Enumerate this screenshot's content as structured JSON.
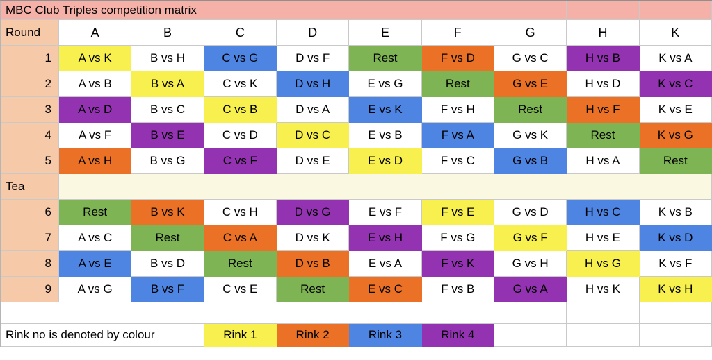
{
  "title": "MBC Club Triples competition matrix",
  "round_header": "Round",
  "teams": [
    "A",
    "B",
    "C",
    "D",
    "E",
    "F",
    "G",
    "H",
    "K"
  ],
  "tea_label": "Tea",
  "tea_after_round": 5,
  "colors": {
    "rink1": "#F7F04E",
    "rink2": "#EA7125",
    "rink3": "#4E84E2",
    "rink4": "#9333B1",
    "rest": "#7EB454",
    "title_bg": "#F5B1A7",
    "label_bg": "#F6C9A9",
    "tea_bg": "#FAF8E0",
    "grid": "#C9C9C9"
  },
  "rounds": [
    {
      "round": "1",
      "cells": [
        [
          "A vs K",
          "rink1"
        ],
        [
          "B vs H",
          null
        ],
        [
          "C vs G",
          "rink3"
        ],
        [
          "D vs F",
          null
        ],
        [
          "Rest",
          "rest"
        ],
        [
          "F vs D",
          "rink2"
        ],
        [
          "G vs C",
          null
        ],
        [
          "H vs B",
          "rink4"
        ],
        [
          "K vs A",
          null
        ]
      ]
    },
    {
      "round": "2",
      "cells": [
        [
          "A vs B",
          null
        ],
        [
          "B vs A",
          "rink1"
        ],
        [
          "C vs K",
          null
        ],
        [
          "D vs H",
          "rink3"
        ],
        [
          "E vs G",
          null
        ],
        [
          "Rest",
          "rest"
        ],
        [
          "G vs E",
          "rink2"
        ],
        [
          "H vs D",
          null
        ],
        [
          "K vs C",
          "rink4"
        ]
      ]
    },
    {
      "round": "3",
      "cells": [
        [
          "A vs D",
          "rink4"
        ],
        [
          "B vs C",
          null
        ],
        [
          "C vs B",
          "rink1"
        ],
        [
          "D vs A",
          null
        ],
        [
          "E vs K",
          "rink3"
        ],
        [
          "F vs H",
          null
        ],
        [
          "Rest",
          "rest"
        ],
        [
          "H vs F",
          "rink2"
        ],
        [
          "K vs E",
          null
        ]
      ]
    },
    {
      "round": "4",
      "cells": [
        [
          "A vs F",
          null
        ],
        [
          "B vs E",
          "rink4"
        ],
        [
          "C vs D",
          null
        ],
        [
          "D vs C",
          "rink1"
        ],
        [
          "E vs B",
          null
        ],
        [
          "F vs A",
          "rink3"
        ],
        [
          "G vs K",
          null
        ],
        [
          "Rest",
          "rest"
        ],
        [
          "K vs G",
          "rink2"
        ]
      ]
    },
    {
      "round": "5",
      "cells": [
        [
          "A vs H",
          "rink2"
        ],
        [
          "B vs G",
          null
        ],
        [
          "C vs F",
          "rink4"
        ],
        [
          "D vs E",
          null
        ],
        [
          "E vs D",
          "rink1"
        ],
        [
          "F vs C",
          null
        ],
        [
          "G vs B",
          "rink3"
        ],
        [
          "H vs A",
          null
        ],
        [
          "Rest",
          "rest"
        ]
      ]
    },
    {
      "round": "6",
      "cells": [
        [
          "Rest",
          "rest"
        ],
        [
          "B vs K",
          "rink2"
        ],
        [
          "C vs H",
          null
        ],
        [
          "D vs G",
          "rink4"
        ],
        [
          "E vs F",
          null
        ],
        [
          "F vs E",
          "rink1"
        ],
        [
          "G vs D",
          null
        ],
        [
          "H vs C",
          "rink3"
        ],
        [
          "K vs B",
          null
        ]
      ]
    },
    {
      "round": "7",
      "cells": [
        [
          "A vs C",
          null
        ],
        [
          "Rest",
          "rest"
        ],
        [
          "C vs A",
          "rink2"
        ],
        [
          "D vs K",
          null
        ],
        [
          "E vs H",
          "rink4"
        ],
        [
          "F vs G",
          null
        ],
        [
          "G vs F",
          "rink1"
        ],
        [
          "H vs E",
          null
        ],
        [
          "K vs D",
          "rink3"
        ]
      ]
    },
    {
      "round": "8",
      "cells": [
        [
          "A vs E",
          "rink3"
        ],
        [
          "B vs D",
          null
        ],
        [
          "Rest",
          "rest"
        ],
        [
          "D vs B",
          "rink2"
        ],
        [
          "E vs A",
          null
        ],
        [
          "F vs K",
          "rink4"
        ],
        [
          "G vs H",
          null
        ],
        [
          "H vs G",
          "rink1"
        ],
        [
          "K vs F",
          null
        ]
      ]
    },
    {
      "round": "9",
      "cells": [
        [
          "A vs G",
          null
        ],
        [
          "B vs F",
          "rink3"
        ],
        [
          "C vs E",
          null
        ],
        [
          "Rest",
          "rest"
        ],
        [
          "E vs C",
          "rink2"
        ],
        [
          "F vs B",
          null
        ],
        [
          "G vs A",
          "rink4"
        ],
        [
          "H vs K",
          null
        ],
        [
          "K vs H",
          "rink1"
        ]
      ]
    }
  ],
  "legend": {
    "label": "Rink no is denoted by colour",
    "items": [
      {
        "text": "Rink 1",
        "color": "rink1"
      },
      {
        "text": "Rink 2",
        "color": "rink2"
      },
      {
        "text": "Rink 3",
        "color": "rink3"
      },
      {
        "text": "Rink 4",
        "color": "rink4"
      }
    ]
  }
}
